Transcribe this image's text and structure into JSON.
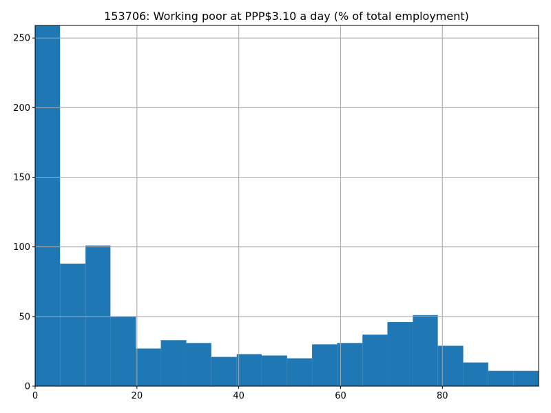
{
  "chart_data": {
    "type": "bar",
    "title": "153706: Working poor at PPP$3.10 a day (% of total employment)",
    "xlabel": "",
    "ylabel": "",
    "grid": true,
    "bar_color": "#1f77b4",
    "xlim": [
      0,
      98.9
    ],
    "ylim": [
      0,
      259
    ],
    "x_ticks": [
      0,
      20,
      40,
      60,
      80
    ],
    "y_ticks": [
      0,
      50,
      100,
      150,
      200,
      250
    ],
    "bins": [
      {
        "start": 0.0,
        "end": 4.9,
        "count": 259
      },
      {
        "start": 4.9,
        "end": 9.9,
        "count": 88
      },
      {
        "start": 9.9,
        "end": 14.8,
        "count": 101
      },
      {
        "start": 14.8,
        "end": 19.8,
        "count": 50
      },
      {
        "start": 19.8,
        "end": 24.7,
        "count": 27
      },
      {
        "start": 24.7,
        "end": 29.7,
        "count": 33
      },
      {
        "start": 29.7,
        "end": 34.6,
        "count": 31
      },
      {
        "start": 34.6,
        "end": 39.6,
        "count": 21
      },
      {
        "start": 39.6,
        "end": 44.5,
        "count": 23
      },
      {
        "start": 44.5,
        "end": 49.5,
        "count": 22
      },
      {
        "start": 49.5,
        "end": 54.4,
        "count": 20
      },
      {
        "start": 54.4,
        "end": 59.3,
        "count": 30
      },
      {
        "start": 59.3,
        "end": 64.3,
        "count": 31
      },
      {
        "start": 64.3,
        "end": 69.2,
        "count": 37
      },
      {
        "start": 69.2,
        "end": 74.2,
        "count": 46
      },
      {
        "start": 74.2,
        "end": 79.1,
        "count": 51
      },
      {
        "start": 79.1,
        "end": 84.1,
        "count": 29
      },
      {
        "start": 84.1,
        "end": 89.0,
        "count": 17
      },
      {
        "start": 89.0,
        "end": 94.0,
        "count": 11
      },
      {
        "start": 94.0,
        "end": 98.9,
        "count": 11
      }
    ]
  }
}
